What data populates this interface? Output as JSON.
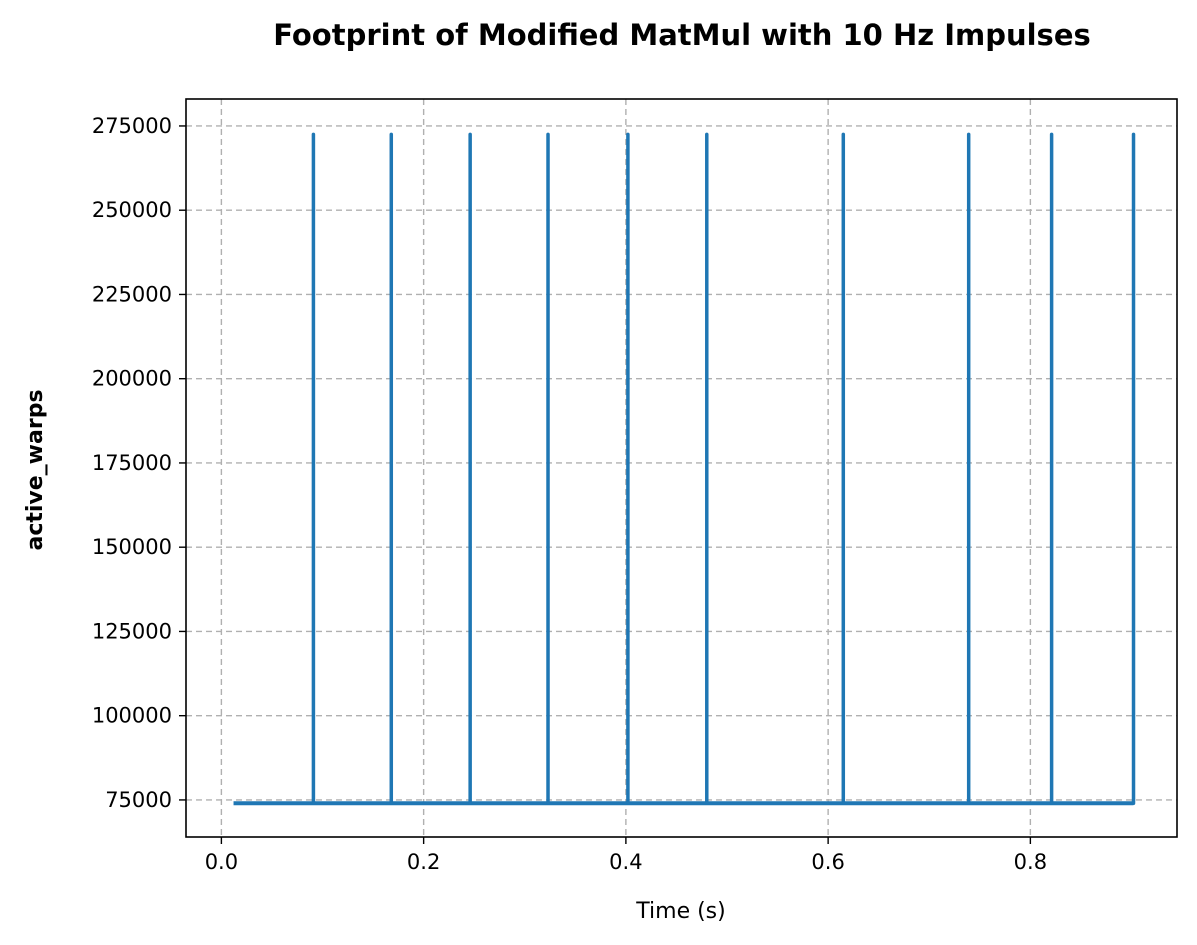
{
  "chart_data": {
    "type": "line",
    "title": "Footprint of Modified MatMul with 10 Hz Impulses",
    "xlabel": "Time (s)",
    "ylabel": "active_warps",
    "xlim": [
      -0.035,
      0.945
    ],
    "ylim": [
      64000,
      283000
    ],
    "x_ticks": [
      0.0,
      0.2,
      0.4,
      0.6,
      0.8
    ],
    "x_tick_labels": [
      "0.0",
      "0.2",
      "0.4",
      "0.6",
      "0.8"
    ],
    "y_ticks": [
      75000,
      100000,
      125000,
      150000,
      175000,
      200000,
      225000,
      250000,
      275000
    ],
    "y_tick_labels": [
      "75000",
      "100000",
      "125000",
      "150000",
      "175000",
      "200000",
      "225000",
      "250000",
      "275000"
    ],
    "grid": true,
    "line_color": "#1f77b4",
    "series": [
      {
        "baseline": 74000,
        "peak": 272500,
        "x_start": 0.012,
        "x_end": 0.902,
        "spike_times": [
          0.091,
          0.168,
          0.246,
          0.323,
          0.402,
          0.48,
          0.615,
          0.739,
          0.821,
          0.902
        ]
      }
    ]
  }
}
